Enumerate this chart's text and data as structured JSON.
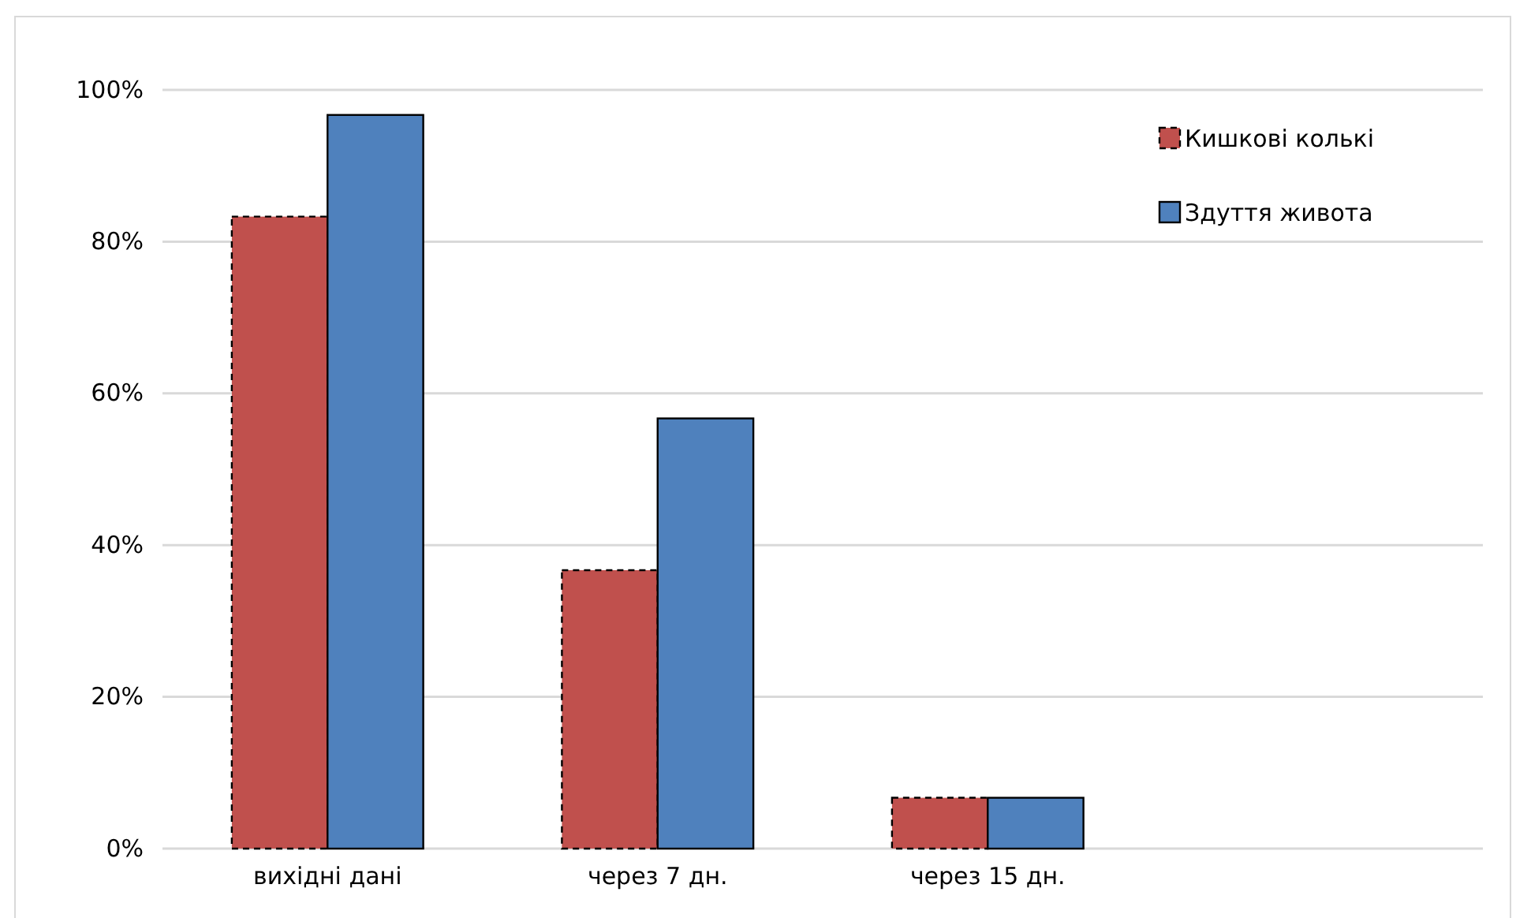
{
  "chart_data": {
    "type": "bar",
    "categories": [
      "вихідні дані",
      "через 7 дн.",
      "через 15 дн.",
      null
    ],
    "series": [
      {
        "name": "Кишкові колькі",
        "color": "#c0504d",
        "line_style": "dashed",
        "values": [
          83.3,
          36.7,
          6.7,
          null
        ]
      },
      {
        "name": "Здуття живота",
        "color": "#4f81bd",
        "line_style": "solid",
        "values": [
          96.7,
          56.7,
          6.7,
          null
        ]
      }
    ],
    "ylim": [
      0,
      100
    ],
    "yticks": [
      {
        "value": 0,
        "label": "0%"
      },
      {
        "value": 20,
        "label": "20%"
      },
      {
        "value": 40,
        "label": "40%"
      },
      {
        "value": 60,
        "label": "60%"
      },
      {
        "value": 80,
        "label": "80%"
      },
      {
        "value": 100,
        "label": "100%"
      }
    ],
    "grid": "y",
    "legend": "top right"
  }
}
